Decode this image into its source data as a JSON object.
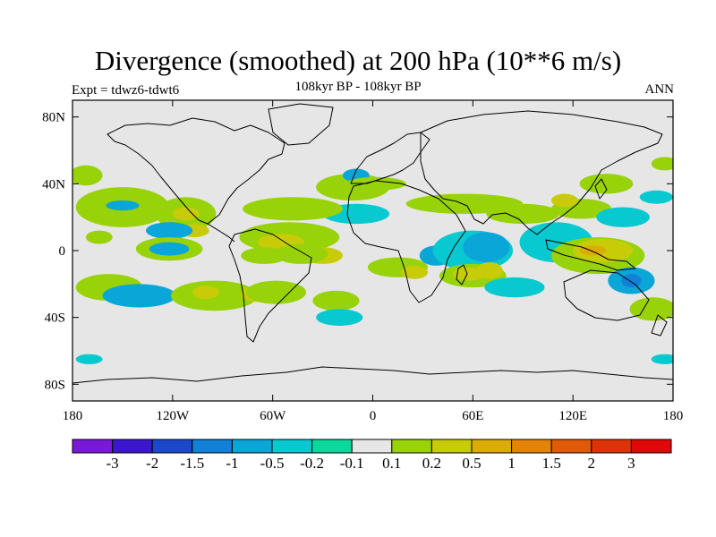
{
  "header": {
    "title": "Divergence (smoothed) at 200 hPa (10**6 m/s)",
    "expt": "Expt = tdwz6-tdwt6",
    "subtitle": "108kyr BP - 108kyr BP",
    "season": "ANN"
  },
  "chart_data": {
    "type": "heatmap",
    "title": "Divergence (smoothed) at 200 hPa (10**6 m/s)",
    "subtitle": "108kyr BP - 108kyr BP",
    "xlim": [
      -180,
      180
    ],
    "ylim": [
      -90,
      90
    ],
    "x_tick_labels": [
      "180",
      "120W",
      "60W",
      "0",
      "60E",
      "120E",
      "180"
    ],
    "x_tick_values": [
      -180,
      -120,
      -60,
      0,
      60,
      120,
      180
    ],
    "y_tick_labels": [
      "80N",
      "40N",
      "0",
      "40S",
      "80S"
    ],
    "y_tick_values": [
      80,
      40,
      0,
      -40,
      -80
    ],
    "colorbar": {
      "labels": [
        "-3",
        "-2",
        "-1.5",
        "-1",
        "-0.5",
        "-0.2",
        "-0.1",
        "0.1",
        "0.2",
        "0.5",
        "1",
        "1.5",
        "2",
        "3"
      ],
      "colors": [
        "#7a18d8",
        "#3a16cc",
        "#1c48cc",
        "#1280d6",
        "#0aa6d8",
        "#08c8d0",
        "#0ad89c",
        "#e6e6e6",
        "#98d208",
        "#c8cc08",
        "#dcac06",
        "#e48406",
        "#e05a08",
        "#dc3408",
        "#e00808"
      ]
    },
    "regions": [
      {
        "lon": -172,
        "lat": 45,
        "rx": 10,
        "ry": 6,
        "value": 0.2
      },
      {
        "lon": -150,
        "lat": 26,
        "rx": 28,
        "ry": 12,
        "value": 0.2
      },
      {
        "lon": -150,
        "lat": 27,
        "rx": 10,
        "ry": 3,
        "value": -0.5
      },
      {
        "lon": -164,
        "lat": 8,
        "rx": 8,
        "ry": 4,
        "value": 0.2
      },
      {
        "lon": -112,
        "lat": 22,
        "rx": 18,
        "ry": 10,
        "value": 0.2
      },
      {
        "lon": -112,
        "lat": 22,
        "rx": 8,
        "ry": 4,
        "value": 0.5
      },
      {
        "lon": -107,
        "lat": 12,
        "rx": 9,
        "ry": 4,
        "value": 0.5
      },
      {
        "lon": -122,
        "lat": 12,
        "rx": 14,
        "ry": 5,
        "value": -0.5
      },
      {
        "lon": -122,
        "lat": 1,
        "rx": 20,
        "ry": 7,
        "value": 0.2
      },
      {
        "lon": -122,
        "lat": 1,
        "rx": 12,
        "ry": 4,
        "value": -0.5
      },
      {
        "lon": -158,
        "lat": -22,
        "rx": 20,
        "ry": 8,
        "value": 0.2
      },
      {
        "lon": -140,
        "lat": -27,
        "rx": 22,
        "ry": 7,
        "value": -0.5
      },
      {
        "lon": -95,
        "lat": -27,
        "rx": 26,
        "ry": 9,
        "value": 0.2
      },
      {
        "lon": -100,
        "lat": -25,
        "rx": 8,
        "ry": 4,
        "value": 0.5
      },
      {
        "lon": -65,
        "lat": -26,
        "rx": 14,
        "ry": 5,
        "value": 0.5
      },
      {
        "lon": -50,
        "lat": 8,
        "rx": 30,
        "ry": 9,
        "value": 0.2
      },
      {
        "lon": -55,
        "lat": 5,
        "rx": 14,
        "ry": 5,
        "value": 0.5
      },
      {
        "lon": -65,
        "lat": -3,
        "rx": 14,
        "ry": 5,
        "value": 0.2
      },
      {
        "lon": -30,
        "lat": -3,
        "rx": 12,
        "ry": 5,
        "value": 0.5
      },
      {
        "lon": -43,
        "lat": -2,
        "rx": 16,
        "ry": 6,
        "value": 0.2
      },
      {
        "lon": -12,
        "lat": 38,
        "rx": 22,
        "ry": 8,
        "value": 0.2
      },
      {
        "lon": -10,
        "lat": 45,
        "rx": 8,
        "ry": 4,
        "value": -0.5
      },
      {
        "lon": -10,
        "lat": 22,
        "rx": 20,
        "ry": 6,
        "value": -0.2
      },
      {
        "lon": -48,
        "lat": 25,
        "rx": 30,
        "ry": 7,
        "value": 0.2
      },
      {
        "lon": -58,
        "lat": -25,
        "rx": 18,
        "ry": 7,
        "value": 0.2
      },
      {
        "lon": -22,
        "lat": -30,
        "rx": 14,
        "ry": 6,
        "value": 0.2
      },
      {
        "lon": -20,
        "lat": -40,
        "rx": 14,
        "ry": 5,
        "value": -0.2
      },
      {
        "lon": 2,
        "lat": 40,
        "rx": 18,
        "ry": 4,
        "value": 0.2
      },
      {
        "lon": 15,
        "lat": -10,
        "rx": 18,
        "ry": 6,
        "value": 0.2
      },
      {
        "lon": 25,
        "lat": -13,
        "rx": 8,
        "ry": 4,
        "value": 0.5
      },
      {
        "lon": 38,
        "lat": -3,
        "rx": 10,
        "ry": 6,
        "value": -0.5
      },
      {
        "lon": 55,
        "lat": 28,
        "rx": 35,
        "ry": 6,
        "value": 0.2
      },
      {
        "lon": 60,
        "lat": 0,
        "rx": 24,
        "ry": 12,
        "value": -0.2
      },
      {
        "lon": 68,
        "lat": 2,
        "rx": 14,
        "ry": 9,
        "value": -0.5
      },
      {
        "lon": 60,
        "lat": -15,
        "rx": 20,
        "ry": 7,
        "value": 0.2
      },
      {
        "lon": 58,
        "lat": -14,
        "rx": 10,
        "ry": 4,
        "value": 0.5
      },
      {
        "lon": 70,
        "lat": -12,
        "rx": 8,
        "ry": 5,
        "value": 0.5
      },
      {
        "lon": 90,
        "lat": 22,
        "rx": 22,
        "ry": 6,
        "value": 0.2
      },
      {
        "lon": 85,
        "lat": -22,
        "rx": 18,
        "ry": 6,
        "value": -0.2
      },
      {
        "lon": 110,
        "lat": 5,
        "rx": 22,
        "ry": 12,
        "value": -0.2
      },
      {
        "lon": 135,
        "lat": -3,
        "rx": 28,
        "ry": 11,
        "value": 0.2
      },
      {
        "lon": 138,
        "lat": 0,
        "rx": 18,
        "ry": 7,
        "value": 0.5
      },
      {
        "lon": 132,
        "lat": 0,
        "rx": 8,
        "ry": 3,
        "value": 1
      },
      {
        "lon": 125,
        "lat": 25,
        "rx": 18,
        "ry": 6,
        "value": 0.2
      },
      {
        "lon": 115,
        "lat": 30,
        "rx": 8,
        "ry": 4,
        "value": 0.5
      },
      {
        "lon": 150,
        "lat": 20,
        "rx": 16,
        "ry": 6,
        "value": -0.2
      },
      {
        "lon": 140,
        "lat": 40,
        "rx": 16,
        "ry": 6,
        "value": 0.2
      },
      {
        "lon": 155,
        "lat": -18,
        "rx": 14,
        "ry": 8,
        "value": -0.5
      },
      {
        "lon": 155,
        "lat": -18,
        "rx": 6,
        "ry": 4,
        "value": -1
      },
      {
        "lon": 168,
        "lat": -35,
        "rx": 14,
        "ry": 7,
        "value": 0.2
      },
      {
        "lon": 170,
        "lat": 32,
        "rx": 10,
        "ry": 4,
        "value": -0.2
      },
      {
        "lon": 175,
        "lat": 52,
        "rx": 8,
        "ry": 4,
        "value": 0.2
      },
      {
        "lon": -170,
        "lat": -65,
        "rx": 8,
        "ry": 3,
        "value": -0.2
      },
      {
        "lon": 175,
        "lat": -65,
        "rx": 8,
        "ry": 3,
        "value": -0.2
      }
    ]
  }
}
